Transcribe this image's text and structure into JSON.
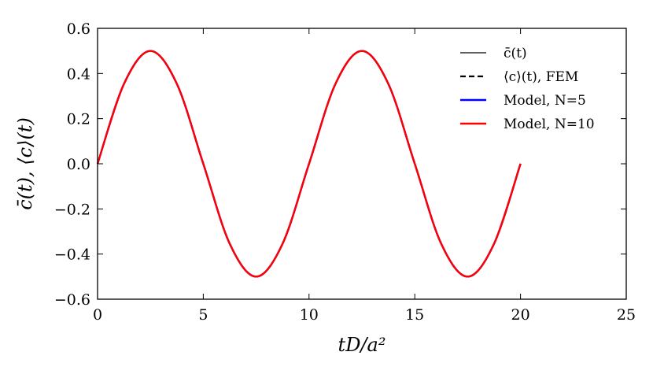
{
  "chart_data": {
    "type": "line",
    "title": "",
    "xlabel": "tD/a²",
    "ylabel": "c̄(t), ⟨c⟩(t)",
    "xlim": [
      0,
      25
    ],
    "ylim": [
      -0.6,
      0.6
    ],
    "xticks": [
      0,
      5,
      10,
      15,
      20,
      25
    ],
    "yticks": [
      -0.6,
      -0.4,
      -0.2,
      0.0,
      0.2,
      0.4,
      0.6
    ],
    "xtick_labels": [
      "0",
      "5",
      "10",
      "15",
      "20",
      "25"
    ],
    "ytick_labels": [
      "−0.6",
      "−0.4",
      "−0.2",
      "0.0",
      "0.2",
      "0.4",
      "0.6"
    ],
    "grid": false,
    "legend_position": "top-right",
    "series": [
      {
        "name": "c̄(t)",
        "style": "solid-thin",
        "color": "#000000",
        "x": [
          0,
          1.25,
          2.5,
          3.75,
          5,
          6.25,
          7.5,
          8.75,
          10,
          11.25,
          12.5,
          13.75,
          15,
          16.25,
          17.5,
          18.75,
          20
        ],
        "y": [
          0,
          0.354,
          0.5,
          0.354,
          0,
          -0.354,
          -0.5,
          -0.354,
          0,
          0.354,
          0.5,
          0.354,
          0,
          -0.354,
          -0.5,
          -0.354,
          0
        ]
      },
      {
        "name": "⟨c⟩(t), FEM",
        "style": "dashed",
        "color": "#000000",
        "x": [
          0,
          1.25,
          2.5,
          3.75,
          5,
          6.25,
          7.5,
          8.75,
          10,
          11.25,
          12.5,
          13.75,
          15,
          16.25,
          17.5,
          18.75,
          20
        ],
        "y": [
          0,
          0.354,
          0.5,
          0.354,
          0,
          -0.354,
          -0.5,
          -0.354,
          0,
          0.354,
          0.5,
          0.354,
          0,
          -0.354,
          -0.5,
          -0.354,
          0
        ]
      },
      {
        "name": "Model, N=5",
        "style": "solid",
        "color": "#0000ff",
        "x": [
          0,
          1.25,
          2.5,
          3.75,
          5,
          6.25,
          7.5,
          8.75,
          10,
          11.25,
          12.5,
          13.75,
          15,
          16.25,
          17.5,
          18.75,
          20
        ],
        "y": [
          0,
          0.354,
          0.5,
          0.354,
          0,
          -0.354,
          -0.5,
          -0.354,
          0,
          0.354,
          0.5,
          0.354,
          0,
          -0.354,
          -0.5,
          -0.354,
          0
        ]
      },
      {
        "name": "Model, N=10",
        "style": "solid",
        "color": "#ff0000",
        "x": [
          0,
          1.25,
          2.5,
          3.75,
          5,
          6.25,
          7.5,
          8.75,
          10,
          11.25,
          12.5,
          13.75,
          15,
          16.25,
          17.5,
          18.75,
          20
        ],
        "y": [
          0,
          0.354,
          0.5,
          0.354,
          0,
          -0.354,
          -0.5,
          -0.354,
          0,
          0.354,
          0.5,
          0.354,
          0,
          -0.354,
          -0.5,
          -0.354,
          0
        ]
      }
    ]
  }
}
